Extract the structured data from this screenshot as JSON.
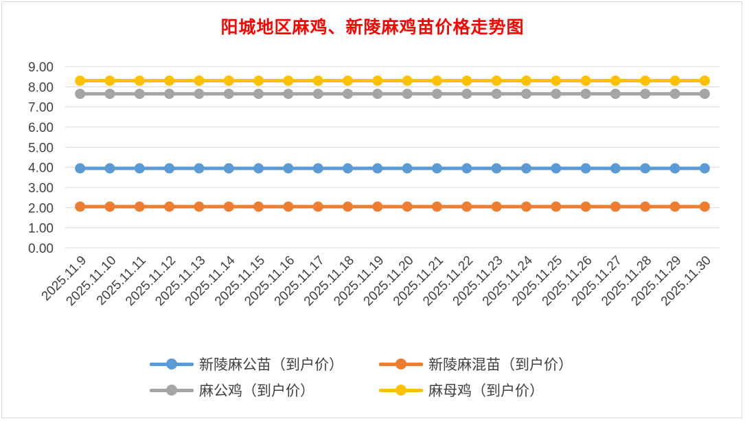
{
  "chart_data": {
    "type": "line",
    "title": "阳城地区麻鸡、新陵麻鸡苗价格走势图",
    "title_color": "#ff0000",
    "categories": [
      "2025.11.9",
      "2025.11.10",
      "2025.11.11",
      "2025.11.12",
      "2025.11.13",
      "2025.11.14",
      "2025.11.15",
      "2025.11.16",
      "2025.11.17",
      "2025.11.18",
      "2025.11.19",
      "2025.11.20",
      "2025.11.21",
      "2025.11.22",
      "2025.11.23",
      "2025.11.24",
      "2025.11.25",
      "2025.11.26",
      "2025.11.27",
      "2025.11.28",
      "2025.11.29",
      "2025.11.30"
    ],
    "y_ticks": [
      "0.00",
      "1.00",
      "2.00",
      "3.00",
      "4.00",
      "5.00",
      "6.00",
      "7.00",
      "8.00",
      "9.00"
    ],
    "ylim": [
      0,
      9
    ],
    "grid": true,
    "legend_position": "bottom",
    "series": [
      {
        "name": "新陵麻公苗（到户价）",
        "color": "#5b9bd5",
        "values": [
          3.95,
          3.95,
          3.95,
          3.95,
          3.95,
          3.95,
          3.95,
          3.95,
          3.95,
          3.95,
          3.95,
          3.95,
          3.95,
          3.95,
          3.95,
          3.95,
          3.95,
          3.95,
          3.95,
          3.95,
          3.95,
          3.95
        ]
      },
      {
        "name": "新陵麻混苗（到户价）",
        "color": "#ed7d31",
        "values": [
          2.05,
          2.05,
          2.05,
          2.05,
          2.05,
          2.05,
          2.05,
          2.05,
          2.05,
          2.05,
          2.05,
          2.05,
          2.05,
          2.05,
          2.05,
          2.05,
          2.05,
          2.05,
          2.05,
          2.05,
          2.05,
          2.05
        ]
      },
      {
        "name": "麻公鸡（到户价）",
        "color": "#a5a5a5",
        "values": [
          7.65,
          7.65,
          7.65,
          7.65,
          7.65,
          7.65,
          7.65,
          7.65,
          7.65,
          7.65,
          7.65,
          7.65,
          7.65,
          7.65,
          7.65,
          7.65,
          7.65,
          7.65,
          7.65,
          7.65,
          7.65,
          7.65
        ]
      },
      {
        "name": "麻母鸡（到户价）",
        "color": "#ffc000",
        "values": [
          8.3,
          8.3,
          8.3,
          8.3,
          8.3,
          8.3,
          8.3,
          8.3,
          8.3,
          8.3,
          8.3,
          8.3,
          8.3,
          8.3,
          8.3,
          8.3,
          8.3,
          8.3,
          8.3,
          8.3,
          8.3,
          8.3
        ]
      }
    ]
  }
}
